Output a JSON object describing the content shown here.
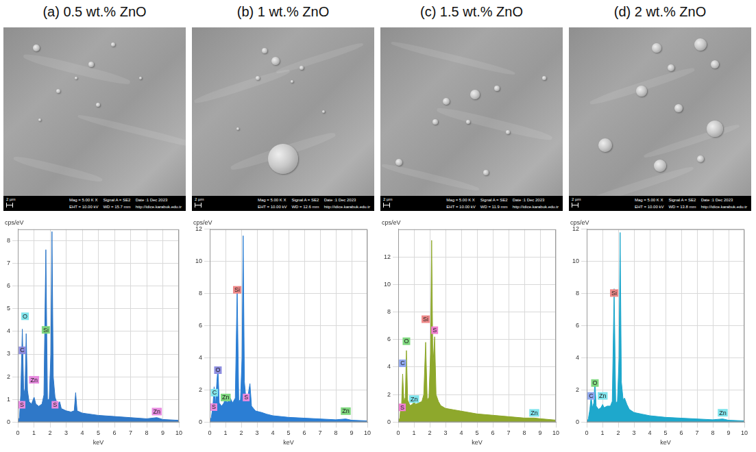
{
  "panels": [
    {
      "title": "(a) 0.5 wt.% ZnO",
      "sem": {
        "scale_bar": "2 µm",
        "info": [
          [
            "Mag = 5.00 K X",
            "EHT = 10.00 kV"
          ],
          [
            "Signal A = SE2",
            "WD = 15.7 mm"
          ],
          [
            "Date :1 Dec 2023",
            "http://idice.karabuk.edu.tr"
          ]
        ]
      }
    },
    {
      "title": "(b) 1 wt.% ZnO",
      "sem": {
        "scale_bar": "2 µm",
        "info": [
          [
            "Mag = 5.00 K X",
            "EHT = 10.00 kV"
          ],
          [
            "Signal A = SE2",
            "WD = 12.6 mm"
          ],
          [
            "Date :1 Dec 2023",
            "http://idice.karabuk.edu.tr"
          ]
        ]
      }
    },
    {
      "title": "(c) 1.5 wt.% ZnO",
      "sem": {
        "scale_bar": "2 µm",
        "info": [
          [
            "Mag = 5.00 K X",
            "EHT = 10.00 kV"
          ],
          [
            "Signal A = SE2",
            "WD = 11.9 mm"
          ],
          [
            "Date :1 Dec 2023",
            "http://idice.karabuk.edu.tr"
          ]
        ]
      }
    },
    {
      "title": "(d) 2 wt.% ZnO",
      "sem": {
        "scale_bar": "2 µm",
        "info": [
          [
            "Mag = 5.00 K X",
            "EHT = 10.00 kV"
          ],
          [
            "Signal A = SE2",
            "WD = 13.8 mm"
          ],
          [
            "Date :1 Dec 2023",
            "http://idice.karabuk.edu.tr"
          ]
        ]
      }
    }
  ],
  "chart_data": [
    {
      "type": "area",
      "x_label": "keV",
      "y_label": "cps/eV",
      "color": "#2f78c8",
      "grid": true,
      "xlim": [
        0,
        10
      ],
      "xticks": [
        0,
        1,
        2,
        3,
        4,
        5,
        6,
        7,
        8,
        9,
        10
      ],
      "ylim": [
        0,
        8.5
      ],
      "yticks": [
        0,
        1,
        2,
        3,
        4,
        5,
        6,
        7,
        8
      ],
      "x": [
        0,
        0.1,
        0.18,
        0.28,
        0.36,
        0.44,
        0.52,
        0.6,
        0.7,
        0.85,
        1.01,
        1.12,
        1.3,
        1.5,
        1.62,
        1.74,
        1.84,
        1.95,
        2.05,
        2.12,
        2.2,
        2.31,
        2.45,
        2.6,
        2.7,
        3.0,
        3.3,
        3.5,
        3.59,
        3.68,
        4.0,
        5,
        6,
        7,
        8,
        8.63,
        9,
        10
      ],
      "values": [
        0,
        0.2,
        1.2,
        4.1,
        1.5,
        1.2,
        3.9,
        1.4,
        0.9,
        0.8,
        1.1,
        0.8,
        0.7,
        0.8,
        1.2,
        7.6,
        1.0,
        1.0,
        3,
        8.4,
        2,
        1.1,
        0.8,
        0.9,
        0.6,
        0.5,
        0.45,
        0.5,
        1.3,
        0.5,
        0.4,
        0.3,
        0.25,
        0.2,
        0.15,
        0.2,
        0.12,
        0.08
      ],
      "annotations": [
        {
          "text": "S",
          "x": 0.1,
          "y": 0.6,
          "color": "#e88be0"
        },
        {
          "text": "C",
          "x": 0.28,
          "y": 3.0,
          "color": "#8e8ee0"
        },
        {
          "text": "O",
          "x": 0.45,
          "y": 4.5,
          "color": "#80e4ec"
        },
        {
          "text": "Zn",
          "x": 1.01,
          "y": 1.7,
          "color": "#e88be0"
        },
        {
          "text": "Si",
          "x": 1.74,
          "y": 3.9,
          "color": "#80d880"
        },
        {
          "text": "S",
          "x": 2.31,
          "y": 0.6,
          "color": "#e88be0"
        },
        {
          "text": "Zn",
          "x": 8.63,
          "y": 0.3,
          "color": "#e88be0"
        }
      ]
    },
    {
      "type": "area",
      "x_label": "keV",
      "y_label": "cps/eV",
      "color": "#2b7ed4",
      "grid": true,
      "xlim": [
        0,
        10
      ],
      "xticks": [
        0,
        1,
        2,
        3,
        4,
        5,
        6,
        7,
        8,
        9,
        10
      ],
      "ylim": [
        0,
        12
      ],
      "yticks": [
        0,
        2,
        4,
        6,
        8,
        10,
        12
      ],
      "x": [
        0,
        0.1,
        0.2,
        0.28,
        0.36,
        0.45,
        0.52,
        0.6,
        0.75,
        0.9,
        1.01,
        1.1,
        1.3,
        1.45,
        1.62,
        1.74,
        1.84,
        1.95,
        2.05,
        2.12,
        2.2,
        2.31,
        2.42,
        2.55,
        2.65,
        2.9,
        3.3,
        3.6,
        4,
        5,
        6,
        7,
        8,
        8.63,
        9,
        10
      ],
      "values": [
        0,
        0.3,
        1,
        2.2,
        1,
        2.5,
        3.4,
        1.2,
        1.0,
        1.2,
        1.6,
        1.2,
        1.5,
        1.2,
        1.5,
        8.3,
        1.3,
        1.4,
        4,
        11.6,
        2.5,
        1.3,
        1.6,
        2.4,
        1.0,
        0.7,
        0.6,
        0.5,
        0.4,
        0.3,
        0.25,
        0.2,
        0.15,
        0.2,
        0.12,
        0.08
      ],
      "annotations": [
        {
          "text": "S",
          "x": 0.15,
          "y": 0.7,
          "color": "#e88be0"
        },
        {
          "text": "C",
          "x": 0.3,
          "y": 1.6,
          "color": "#80e4ec"
        },
        {
          "text": "O",
          "x": 0.52,
          "y": 3.0,
          "color": "#8e8ee0"
        },
        {
          "text": "Zn",
          "x": 1.01,
          "y": 1.3,
          "color": "#80d880"
        },
        {
          "text": "Si",
          "x": 1.74,
          "y": 8.0,
          "color": "#f08a8a"
        },
        {
          "text": "S",
          "x": 2.31,
          "y": 1.3,
          "color": "#e88be0"
        },
        {
          "text": "Zn",
          "x": 8.63,
          "y": 0.45,
          "color": "#80d880"
        }
      ]
    },
    {
      "type": "area",
      "x_label": "keV",
      "y_label": "cps/eV",
      "color": "#8ea82c",
      "grid": true,
      "xlim": [
        0,
        10
      ],
      "xticks": [
        0,
        1,
        2,
        3,
        4,
        5,
        6,
        7,
        8,
        9,
        10
      ],
      "ylim": [
        0,
        14
      ],
      "yticks": [
        0,
        2,
        4,
        6,
        8,
        10,
        12
      ],
      "x": [
        0,
        0.1,
        0.15,
        0.2,
        0.28,
        0.36,
        0.45,
        0.52,
        0.6,
        0.75,
        0.9,
        1.01,
        1.1,
        1.3,
        1.5,
        1.62,
        1.74,
        1.84,
        1.95,
        2.05,
        2.12,
        2.2,
        2.31,
        2.4,
        2.55,
        2.7,
        3,
        3.5,
        4,
        5,
        6,
        7,
        8,
        8.63,
        9,
        10
      ],
      "values": [
        0,
        0.3,
        1.0,
        0.8,
        3.5,
        1.5,
        1.8,
        5.2,
        1.6,
        1.2,
        1.3,
        1.5,
        1.3,
        1.4,
        1.5,
        2,
        5.8,
        1.6,
        1.8,
        5,
        13.2,
        4,
        6.2,
        2,
        1.5,
        1.2,
        1.0,
        0.9,
        0.8,
        0.6,
        0.5,
        0.4,
        0.3,
        0.3,
        0.25,
        0.15
      ],
      "annotations": [
        {
          "text": "S",
          "x": 0.1,
          "y": 0.8,
          "color": "#f080d0"
        },
        {
          "text": "C",
          "x": 0.28,
          "y": 4.0,
          "color": "#8fa8f0"
        },
        {
          "text": "O",
          "x": 0.52,
          "y": 5.6,
          "color": "#80d880"
        },
        {
          "text": "Zn",
          "x": 1.01,
          "y": 1.4,
          "color": "#80e4ec"
        },
        {
          "text": "Si",
          "x": 1.74,
          "y": 7.2,
          "color": "#f08a8a"
        },
        {
          "text": "S",
          "x": 2.31,
          "y": 6.4,
          "color": "#f080d0"
        },
        {
          "text": "Zn",
          "x": 8.63,
          "y": 0.4,
          "color": "#80e4ec"
        }
      ]
    },
    {
      "type": "area",
      "x_label": "keV",
      "y_label": "cps/eV",
      "color": "#1ea8cc",
      "grid": true,
      "xlim": [
        0,
        10
      ],
      "xticks": [
        0,
        1,
        2,
        3,
        4,
        5,
        6,
        7,
        8,
        9,
        10
      ],
      "ylim": [
        0,
        12
      ],
      "yticks": [
        0,
        2,
        4,
        6,
        8,
        10,
        12
      ],
      "x": [
        0,
        0.1,
        0.2,
        0.28,
        0.36,
        0.45,
        0.52,
        0.6,
        0.75,
        0.9,
        1.01,
        1.1,
        1.3,
        1.5,
        1.62,
        1.74,
        1.84,
        1.95,
        2.05,
        2.12,
        2.2,
        2.31,
        2.4,
        2.55,
        2.7,
        3,
        3.5,
        4,
        5,
        6,
        7,
        8,
        8.63,
        9,
        10
      ],
      "values": [
        0,
        0.2,
        0.8,
        1.6,
        0.9,
        1.2,
        2.6,
        1,
        0.8,
        0.9,
        1.1,
        0.9,
        1.0,
        1.0,
        1.3,
        8.3,
        1.2,
        1.3,
        4,
        11.8,
        2.5,
        1.4,
        1.5,
        1.1,
        0.8,
        0.6,
        0.5,
        0.4,
        0.3,
        0.25,
        0.2,
        0.15,
        0.2,
        0.12,
        0.08
      ],
      "annotations": [
        {
          "text": "C",
          "x": 0.28,
          "y": 1.4,
          "color": "#8fa8f0"
        },
        {
          "text": "O",
          "x": 0.52,
          "y": 2.2,
          "color": "#80d880"
        },
        {
          "text": "Zn",
          "x": 1.01,
          "y": 1.4,
          "color": "#80e4ec"
        },
        {
          "text": "Si",
          "x": 1.74,
          "y": 7.8,
          "color": "#f08a8a"
        },
        {
          "text": "Zn",
          "x": 8.63,
          "y": 0.35,
          "color": "#80e4ec"
        }
      ]
    }
  ]
}
